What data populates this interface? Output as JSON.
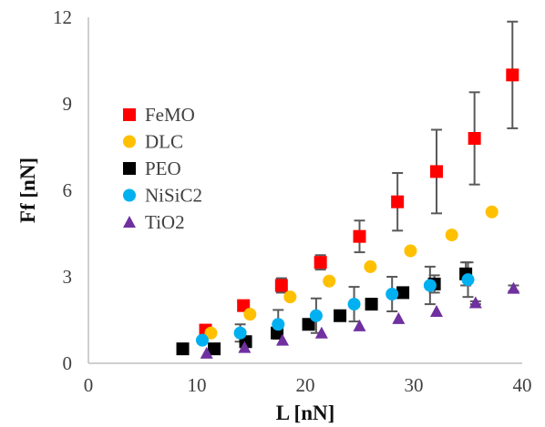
{
  "chart_data": {
    "type": "scatter",
    "title": "",
    "xlabel": "L [nN]",
    "ylabel": "Ff [nN]",
    "xlim": [
      0,
      40
    ],
    "ylim": [
      0,
      12
    ],
    "xticks": [
      "0",
      "10",
      "20",
      "30",
      "40"
    ],
    "yticks": [
      "0",
      "3",
      "6",
      "9",
      "12"
    ],
    "grid": false,
    "legend_position": "left",
    "series": [
      {
        "name": "FeMO",
        "marker": "square",
        "color": "#ff0000",
        "x": [
          10.8,
          14.3,
          17.8,
          21.4,
          25.0,
          28.5,
          32.1,
          35.6,
          39.1
        ],
        "y": [
          1.15,
          2.0,
          2.7,
          3.5,
          4.4,
          5.6,
          6.65,
          7.8,
          10.0
        ],
        "err": [
          0.1,
          0.15,
          0.25,
          0.25,
          0.55,
          1.0,
          1.45,
          1.6,
          1.85
        ]
      },
      {
        "name": "DLC",
        "marker": "circle",
        "color": "#ffc000",
        "x": [
          11.3,
          14.9,
          18.6,
          22.2,
          26.0,
          29.7,
          33.5,
          37.2
        ],
        "y": [
          1.05,
          1.7,
          2.3,
          2.85,
          3.35,
          3.9,
          4.45,
          5.25
        ],
        "err": []
      },
      {
        "name": "PEO",
        "marker": "square",
        "color": "#000000",
        "x": [
          8.7,
          11.6,
          14.5,
          17.4,
          20.3,
          23.2,
          26.1,
          29.0,
          31.9,
          34.8
        ],
        "y": [
          0.5,
          0.5,
          0.75,
          1.05,
          1.35,
          1.65,
          2.05,
          2.45,
          2.75,
          3.1
        ],
        "err": [
          0,
          0.05,
          0.1,
          0.1,
          0.1,
          0.1,
          0.15,
          0.15,
          0.3,
          0.4
        ]
      },
      {
        "name": "NiSiC2",
        "marker": "circle",
        "color": "#00b0f0",
        "x": [
          10.5,
          14.0,
          17.5,
          21.0,
          24.5,
          28.0,
          31.5,
          35.0
        ],
        "y": [
          0.8,
          1.05,
          1.35,
          1.65,
          2.05,
          2.4,
          2.7,
          2.9
        ],
        "err": [
          0,
          0.3,
          0.5,
          0.6,
          0.6,
          0.6,
          0.65,
          0.6
        ]
      },
      {
        "name": "TiO2",
        "marker": "triangle",
        "color": "#7030a0",
        "x": [
          10.9,
          14.4,
          17.9,
          21.5,
          25.0,
          28.6,
          32.1,
          35.7,
          39.2
        ],
        "y": [
          0.35,
          0.55,
          0.8,
          1.05,
          1.3,
          1.55,
          1.8,
          2.1,
          2.6
        ],
        "err": [
          0,
          0,
          0,
          0,
          0,
          0,
          0,
          0.05,
          0.1
        ]
      }
    ]
  }
}
